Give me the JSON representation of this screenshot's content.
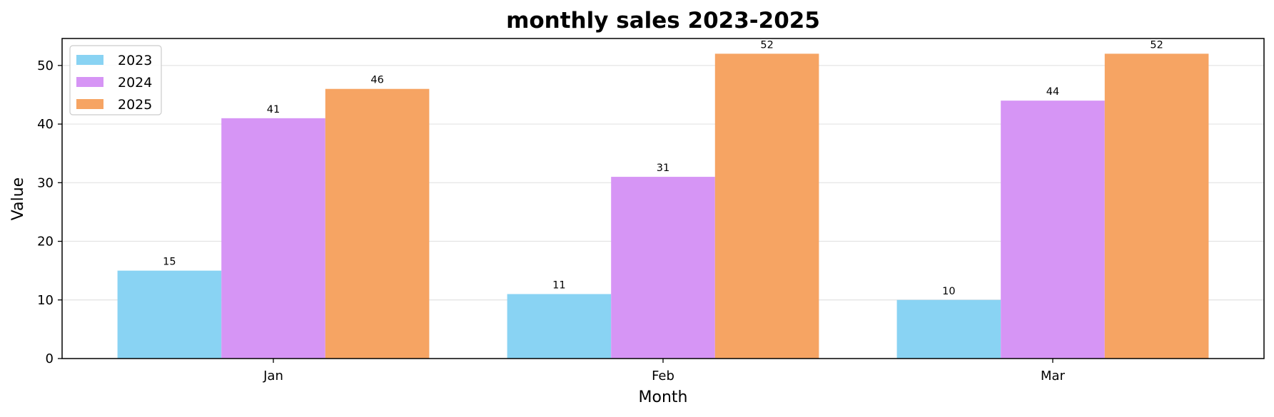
{
  "chart_data": {
    "type": "bar",
    "title": "monthly sales 2023-2025",
    "xlabel": "Month",
    "ylabel": "Value",
    "categories": [
      "Jan",
      "Feb",
      "Mar"
    ],
    "series": [
      {
        "name": "2023",
        "values": [
          15,
          11,
          10
        ],
        "color": "#89d3f3"
      },
      {
        "name": "2024",
        "values": [
          41,
          31,
          44
        ],
        "color": "#d695f5"
      },
      {
        "name": "2025",
        "values": [
          46,
          52,
          52
        ],
        "color": "#f6a463"
      }
    ],
    "ylim": [
      0,
      54.6
    ],
    "yticks": [
      0,
      10,
      20,
      30,
      40,
      50
    ],
    "grid": "y",
    "legend": "top-left",
    "data_labels": true
  }
}
